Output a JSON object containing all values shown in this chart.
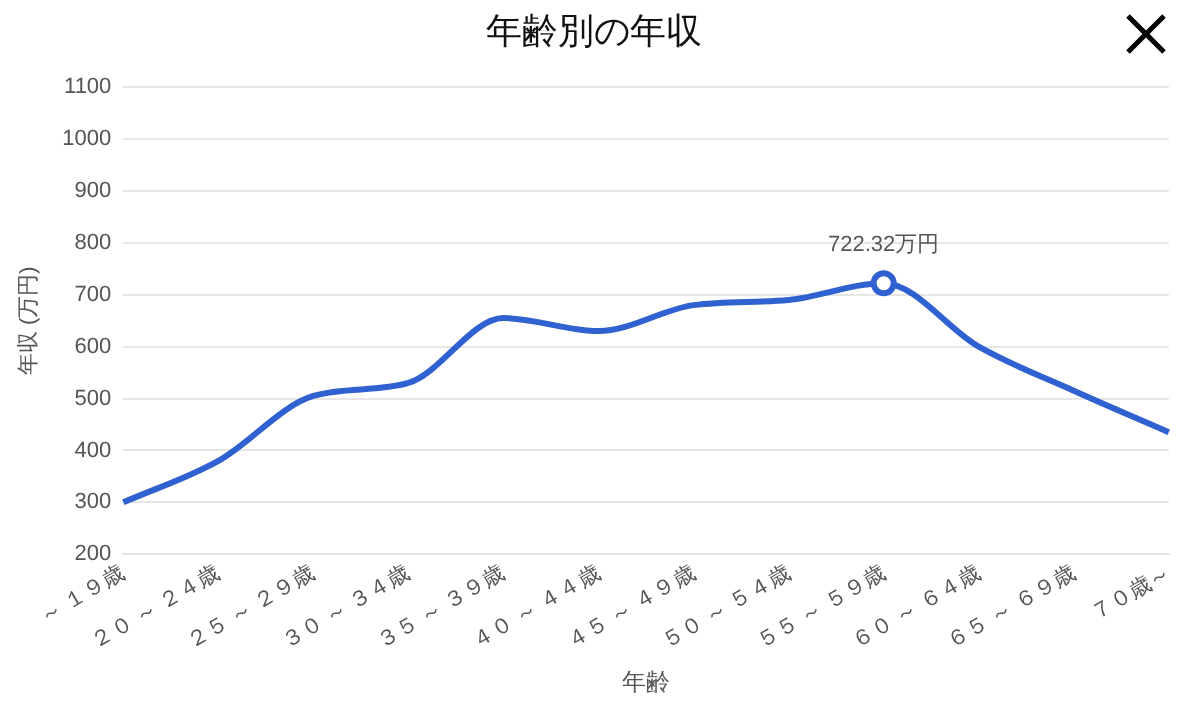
{
  "chart_data": {
    "type": "line",
    "title": "年齢別の年収",
    "xlabel": "年齢",
    "ylabel": "年収 (万円)",
    "categories": [
      "～ １９歳",
      "２０ ～ ２４歳",
      "２５ ～ ２９歳",
      "３０ ～ ３４歳",
      "３５ ～ ３９歳",
      "４０ ～ ４４歳",
      "４５ ～ ４９歳",
      "５０ ～ ５４歳",
      "５５ ～ ５９歳",
      "６０ ～ ６４歳",
      "６５ ～ ６９歳",
      "７０歳～"
    ],
    "series": [
      {
        "color": "#3061d0",
        "values": [
          300,
          380,
          505,
          530,
          655,
          630,
          680,
          690,
          722.32,
          600,
          515,
          435
        ],
        "value_labels": [
          null,
          null,
          null,
          null,
          null,
          null,
          null,
          null,
          "722.32万円",
          null,
          null,
          null
        ]
      }
    ],
    "ylim": [
      200,
      1100
    ],
    "yticks": [
      200,
      300,
      400,
      500,
      600,
      700,
      800,
      900,
      1000,
      1100
    ],
    "grid": "y",
    "legend": false
  }
}
